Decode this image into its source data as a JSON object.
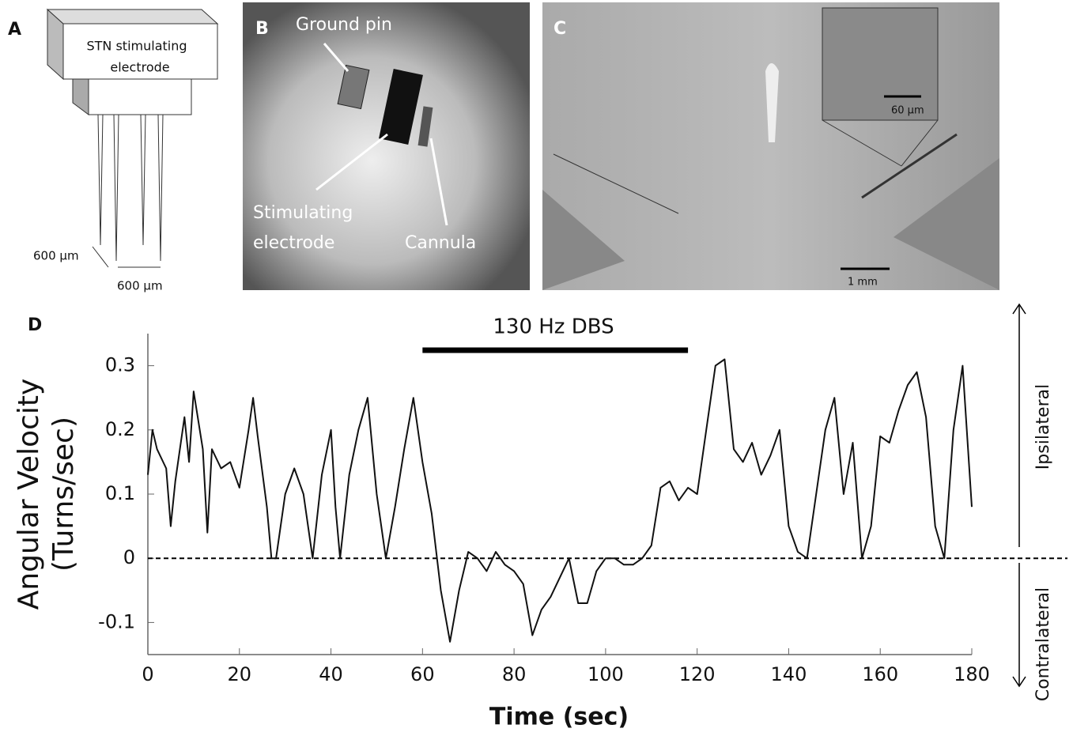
{
  "panels": {
    "a": {
      "letter": "A",
      "electrode_label": [
        "STN stimulating",
        "electrode"
      ],
      "spacing_diagonal": "600 µm",
      "spacing_horizontal": "600 µm"
    },
    "b": {
      "letter": "B",
      "ground": "Ground pin",
      "electrode": [
        "Stimulating",
        "electrode"
      ],
      "cannula": "Cannula"
    },
    "c": {
      "letter": "C",
      "inset_scale": "60 µm",
      "scale": "1 mm"
    }
  },
  "chart_data": {
    "type": "line",
    "panel_letter": "D",
    "annotation": "130 Hz DBS",
    "stim_start": 60,
    "stim_end": 118,
    "zero_line": 0,
    "ylabel": [
      "Angular Velocity",
      "(Turns/sec)"
    ],
    "xlabel": "Time (sec)",
    "side_labels": {
      "up": "Ipsilateral",
      "down": "Contralateral"
    },
    "color": "#111111",
    "x": [
      0,
      1,
      2,
      4,
      5,
      6,
      8,
      9,
      10,
      12,
      13,
      14,
      16,
      18,
      20,
      22,
      23,
      24,
      26,
      27,
      28,
      30,
      32,
      34,
      36,
      38,
      40,
      41,
      42,
      44,
      46,
      48,
      50,
      52,
      54,
      56,
      58,
      60,
      62,
      64,
      66,
      68,
      70,
      72,
      74,
      76,
      78,
      80,
      82,
      84,
      86,
      88,
      90,
      92,
      94,
      96,
      98,
      100,
      102,
      104,
      106,
      108,
      110,
      112,
      114,
      116,
      118,
      120,
      122,
      124,
      126,
      128,
      130,
      132,
      134,
      136,
      138,
      140,
      142,
      144,
      146,
      148,
      150,
      152,
      154,
      156,
      158,
      160,
      162,
      164,
      166,
      168,
      170,
      172,
      174,
      176,
      178,
      180
    ],
    "values": [
      0.13,
      0.2,
      0.17,
      0.14,
      0.05,
      0.12,
      0.22,
      0.15,
      0.26,
      0.17,
      0.04,
      0.17,
      0.14,
      0.15,
      0.11,
      0.2,
      0.25,
      0.19,
      0.08,
      0,
      0,
      0.1,
      0.14,
      0.1,
      0,
      0.13,
      0.2,
      0.08,
      0,
      0.13,
      0.2,
      0.25,
      0.1,
      0,
      0.08,
      0.17,
      0.25,
      0.15,
      0.07,
      -0.05,
      -0.13,
      -0.05,
      0.01,
      0,
      -0.02,
      0.01,
      -0.01,
      -0.02,
      -0.04,
      -0.12,
      -0.08,
      -0.06,
      -0.03,
      0,
      -0.07,
      -0.07,
      -0.02,
      0,
      0,
      -0.01,
      -0.01,
      0,
      0.02,
      0.11,
      0.12,
      0.09,
      0.11,
      0.1,
      0.2,
      0.3,
      0.31,
      0.17,
      0.15,
      0.18,
      0.13,
      0.16,
      0.2,
      0.05,
      0.01,
      0,
      0.1,
      0.2,
      0.25,
      0.1,
      0.18,
      0,
      0.05,
      0.19,
      0.18,
      0.23,
      0.27,
      0.29,
      0.22,
      0.05,
      0,
      0.2,
      0.3,
      0.08
    ],
    "xlim": [
      0,
      180
    ],
    "ylim": [
      -0.15,
      0.35
    ],
    "xticks": [
      0,
      20,
      40,
      60,
      80,
      100,
      120,
      140,
      160,
      180
    ],
    "yticks": [
      -0.1,
      0,
      0.1,
      0.2,
      0.3
    ]
  }
}
